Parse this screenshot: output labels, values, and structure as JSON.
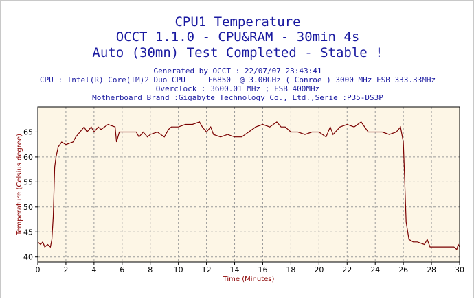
{
  "header": {
    "title": "CPU1 Temperature",
    "subtitle1": "OCCT 1.1.0 - CPU&RAM - 30min 4s",
    "subtitle2": "Auto (30mn) Test Completed - Stable !",
    "generated": "Generated by OCCT : 22/07/07 23:43:41",
    "cpu": "CPU : Intel(R) Core(TM)2 Duo CPU     E6850  @ 3.00GHz ( Conroe ) 3000 MHz FSB 333.33MHz",
    "overclock": "Overclock : 3600.01 MHz ; FSB 400MHz",
    "motherboard": "Motherboard Brand :Gigabyte Technology Co., Ltd.,Serie :P35-DS3P"
  },
  "colors": {
    "title": "#1a1aa0",
    "line": "#7a0000",
    "axis_label": "#8b0000",
    "plot_bg": "#fdf6e6",
    "grid": "#9a9a9a"
  },
  "chart_data": {
    "type": "line",
    "title": "CPU1 Temperature",
    "xlabel": "Time (Minutes)",
    "ylabel": "Temperature (Celsius degree)",
    "xlim": [
      0,
      30
    ],
    "ylim": [
      39,
      70
    ],
    "xticks": [
      0,
      2,
      4,
      6,
      8,
      10,
      12,
      14,
      16,
      18,
      20,
      22,
      24,
      26,
      28,
      30
    ],
    "yticks": [
      40,
      45,
      50,
      55,
      60,
      65
    ],
    "grid": true,
    "series": [
      {
        "name": "",
        "color": "#7a0000",
        "points": [
          [
            0,
            43
          ],
          [
            0.2,
            42.5
          ],
          [
            0.35,
            43
          ],
          [
            0.5,
            42
          ],
          [
            0.7,
            42.5
          ],
          [
            0.9,
            42
          ],
          [
            1.0,
            43.5
          ],
          [
            1.1,
            48
          ],
          [
            1.2,
            58
          ],
          [
            1.3,
            60
          ],
          [
            1.45,
            62
          ],
          [
            1.7,
            63
          ],
          [
            2.0,
            62.5
          ],
          [
            2.5,
            63
          ],
          [
            2.7,
            64
          ],
          [
            3.0,
            65
          ],
          [
            3.3,
            66
          ],
          [
            3.5,
            65
          ],
          [
            3.8,
            66
          ],
          [
            4.0,
            65
          ],
          [
            4.3,
            66
          ],
          [
            4.5,
            65.5
          ],
          [
            5.0,
            66.5
          ],
          [
            5.5,
            66
          ],
          [
            5.6,
            63
          ],
          [
            5.8,
            65
          ],
          [
            6.0,
            65
          ],
          [
            6.5,
            65
          ],
          [
            7.0,
            65
          ],
          [
            7.2,
            64
          ],
          [
            7.5,
            65
          ],
          [
            7.8,
            64
          ],
          [
            8.0,
            64.5
          ],
          [
            8.5,
            65
          ],
          [
            9.0,
            64
          ],
          [
            9.3,
            65.5
          ],
          [
            9.5,
            66
          ],
          [
            10.0,
            66
          ],
          [
            10.5,
            66.5
          ],
          [
            11.0,
            66.5
          ],
          [
            11.5,
            67
          ],
          [
            11.7,
            66
          ],
          [
            12.0,
            65
          ],
          [
            12.3,
            66
          ],
          [
            12.5,
            64.5
          ],
          [
            13.0,
            64
          ],
          [
            13.5,
            64.5
          ],
          [
            14.0,
            64
          ],
          [
            14.5,
            64
          ],
          [
            15.0,
            65
          ],
          [
            15.5,
            66
          ],
          [
            16.0,
            66.5
          ],
          [
            16.5,
            66
          ],
          [
            17.0,
            67
          ],
          [
            17.3,
            66
          ],
          [
            17.6,
            66
          ],
          [
            18.0,
            65
          ],
          [
            18.5,
            65
          ],
          [
            19.0,
            64.5
          ],
          [
            19.5,
            65
          ],
          [
            20.0,
            65
          ],
          [
            20.5,
            64
          ],
          [
            20.8,
            66
          ],
          [
            21.0,
            64.5
          ],
          [
            21.5,
            66
          ],
          [
            22.0,
            66.5
          ],
          [
            22.5,
            66
          ],
          [
            23.0,
            67
          ],
          [
            23.5,
            65
          ],
          [
            24.0,
            65
          ],
          [
            24.5,
            65
          ],
          [
            25.0,
            64.5
          ],
          [
            25.5,
            65
          ],
          [
            25.8,
            66
          ],
          [
            26.0,
            63
          ],
          [
            26.1,
            55
          ],
          [
            26.2,
            47
          ],
          [
            26.4,
            43.5
          ],
          [
            26.7,
            43
          ],
          [
            27.0,
            43
          ],
          [
            27.5,
            42.5
          ],
          [
            27.7,
            43.5
          ],
          [
            27.9,
            42
          ],
          [
            28.3,
            42
          ],
          [
            29.0,
            42
          ],
          [
            29.6,
            42
          ],
          [
            29.8,
            41.5
          ],
          [
            29.9,
            42.5
          ],
          [
            30.0,
            42
          ]
        ]
      }
    ]
  }
}
